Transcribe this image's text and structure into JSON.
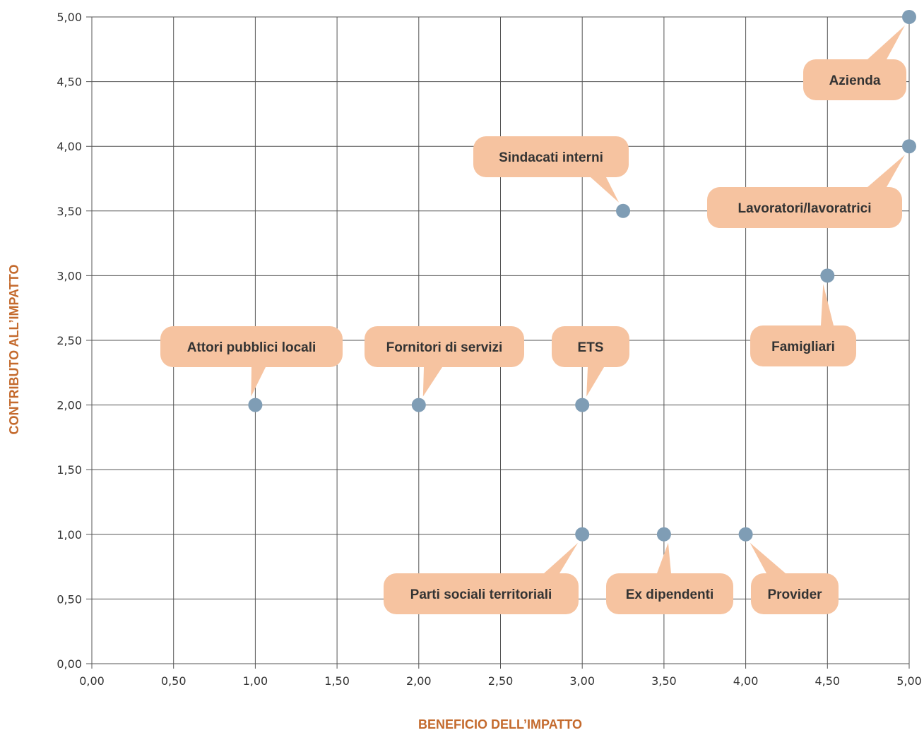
{
  "chart_data": {
    "type": "scatter",
    "xlabel": "BENEFICIO DELL’IMPATTO",
    "ylabel": "CONTRIBUTO ALL’IMPATTO",
    "xlim": [
      0,
      5
    ],
    "ylim": [
      0,
      5
    ],
    "grid": true,
    "x_ticks": [
      "0,00",
      "0,50",
      "1,00",
      "1,50",
      "2,00",
      "2,50",
      "3,00",
      "3,50",
      "4,00",
      "4,50",
      "5,00"
    ],
    "y_ticks": [
      "0,00",
      "0,50",
      "1,00",
      "1,50",
      "2,00",
      "2,50",
      "3,00",
      "3,50",
      "4,00",
      "4,50",
      "5,00"
    ],
    "points": [
      {
        "label": "Azienda",
        "x": 5.0,
        "y": 5.0
      },
      {
        "label": "Lavoratori/lavoratrici",
        "x": 5.0,
        "y": 4.0
      },
      {
        "label": "Sindacati interni",
        "x": 3.25,
        "y": 3.5
      },
      {
        "label": "Famigliari",
        "x": 4.5,
        "y": 3.0
      },
      {
        "label": "Attori pubblici locali",
        "x": 1.0,
        "y": 2.0
      },
      {
        "label": "Fornitori di servizi",
        "x": 2.0,
        "y": 2.0
      },
      {
        "label": "ETS",
        "x": 3.0,
        "y": 2.0
      },
      {
        "label": "Parti sociali territoriali",
        "x": 3.0,
        "y": 1.0
      },
      {
        "label": "Ex dipendenti",
        "x": 3.5,
        "y": 1.0
      },
      {
        "label": "Provider",
        "x": 4.0,
        "y": 1.0
      }
    ]
  },
  "colors": {
    "point": "#7f9db5",
    "callout": "#f6c3a0",
    "axis_title": "#c46a2d",
    "grid": "#555555"
  }
}
